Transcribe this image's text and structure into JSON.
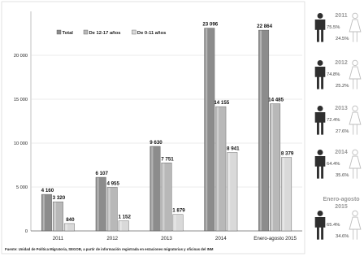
{
  "chart_data": {
    "type": "bar",
    "categories": [
      "2011",
      "2012",
      "2013",
      "2014",
      "Enero-agosto 2015"
    ],
    "series": [
      {
        "name": "Total",
        "values": [
          4160,
          6107,
          9630,
          23096,
          22864
        ],
        "labels": [
          "4 160",
          "6 107",
          "9 630",
          "23 096",
          "22 864"
        ],
        "color": "#8c8c8c"
      },
      {
        "name": "De 12-17 años",
        "values": [
          3320,
          4955,
          7751,
          14155,
          14485
        ],
        "labels": [
          "3 320",
          "4 955",
          "7 751",
          "14 155",
          "14 485"
        ],
        "color": "#b8b8b8"
      },
      {
        "name": "De 0-11 años",
        "values": [
          840,
          1152,
          1879,
          8941,
          8379
        ],
        "labels": [
          "840",
          "1 152",
          "1 879",
          "8 941",
          "8 379"
        ],
        "color": "#d9d9d9"
      }
    ],
    "ylim": [
      0,
      25000
    ],
    "yticks": [
      0,
      5000,
      10000,
      15000,
      20000
    ],
    "ytick_labels": [
      "0",
      "5 000",
      "10 000",
      "15 000",
      "20 000"
    ],
    "grid": true,
    "legend_position": "top-left"
  },
  "source_note": "Fuente: Unidad de Política Migratoria, SEGOB, a partir de información registrada en estaciones migratorias y oficinas del INM",
  "sex_panel": [
    {
      "year": "2011",
      "male_pct": "75.5%",
      "female_pct": "24.5%",
      "male_share": 0.755
    },
    {
      "year": "2012",
      "male_pct": "74.8%",
      "female_pct": "25.2%",
      "male_share": 0.748
    },
    {
      "year": "2013",
      "male_pct": "72.4%",
      "female_pct": "27.6%",
      "male_share": 0.724
    },
    {
      "year": "2014",
      "male_pct": "64.4%",
      "female_pct": "35.6%",
      "male_share": 0.644
    },
    {
      "year": "Enero-agosto 2015",
      "year_lines": [
        "Enero-agosto",
        "2015"
      ],
      "male_pct": "65.4%",
      "female_pct": "34.6%",
      "male_share": 0.654
    }
  ],
  "colors": {
    "male": "#2f2f2f",
    "female": "#bdbdbd",
    "year": "#9a9a9a"
  }
}
